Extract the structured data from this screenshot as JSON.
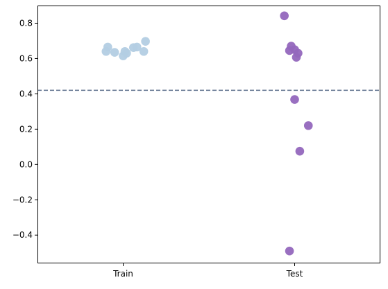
{
  "chart_data": {
    "type": "scatter",
    "style": "strip plot (jittered)",
    "categories": [
      "Train",
      "Test"
    ],
    "series": [
      {
        "category": "Train",
        "color": "#b3cde3",
        "points": [
          {
            "jitter": -0.09,
            "y": 0.665
          },
          {
            "jitter": -0.1,
            "y": 0.64
          },
          {
            "jitter": -0.05,
            "y": 0.635
          },
          {
            "jitter": 0.0,
            "y": 0.615
          },
          {
            "jitter": 0.02,
            "y": 0.63
          },
          {
            "jitter": 0.01,
            "y": 0.64
          },
          {
            "jitter": 0.06,
            "y": 0.662
          },
          {
            "jitter": 0.08,
            "y": 0.665
          },
          {
            "jitter": 0.12,
            "y": 0.64
          },
          {
            "jitter": 0.13,
            "y": 0.697
          }
        ]
      },
      {
        "category": "Test",
        "color": "#9467bd",
        "points": [
          {
            "jitter": -0.06,
            "y": 0.842
          },
          {
            "jitter": -0.03,
            "y": 0.645
          },
          {
            "jitter": -0.02,
            "y": 0.67
          },
          {
            "jitter": 0.0,
            "y": 0.65
          },
          {
            "jitter": 0.02,
            "y": 0.63
          },
          {
            "jitter": 0.01,
            "y": 0.607
          },
          {
            "jitter": 0.0,
            "y": 0.368
          },
          {
            "jitter": 0.08,
            "y": 0.22
          },
          {
            "jitter": 0.03,
            "y": 0.075
          },
          {
            "jitter": -0.03,
            "y": -0.49
          }
        ]
      }
    ],
    "reference_line": {
      "y": 0.42,
      "style": "dashed",
      "color": "#6b7d96"
    },
    "yticks": [
      "0.8",
      "0.6",
      "0.4",
      "0.2",
      "0.0",
      "−0.2",
      "−0.4"
    ],
    "ytick_values": [
      0.8,
      0.6,
      0.4,
      0.2,
      0.0,
      -0.2,
      -0.4
    ],
    "ylim": [
      -0.56,
      0.9
    ],
    "xlim": [
      -0.5,
      1.5
    ],
    "grid": false,
    "legend": "none",
    "title": "",
    "xlabel": "",
    "ylabel": ""
  }
}
